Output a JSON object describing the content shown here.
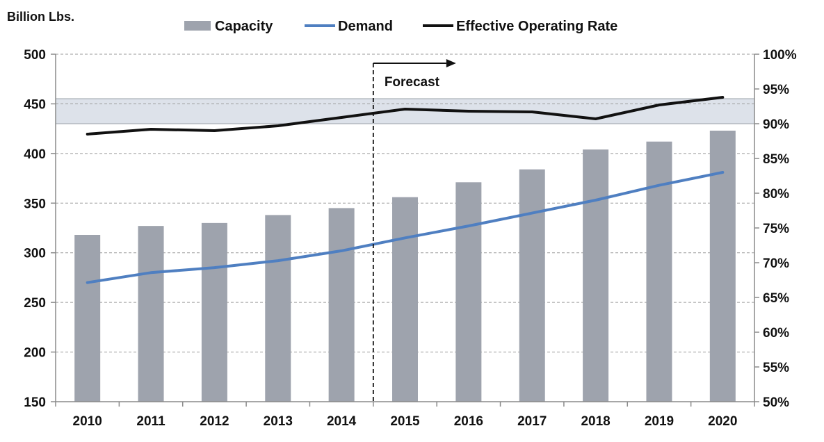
{
  "chart_data": {
    "type": "bar",
    "categories": [
      "2010",
      "2011",
      "2012",
      "2013",
      "2014",
      "2015",
      "2016",
      "2017",
      "2018",
      "2019",
      "2020"
    ],
    "y_unit_label": "Billion Lbs.",
    "ylim": [
      150,
      500
    ],
    "yticks": [
      "150",
      "200",
      "250",
      "300",
      "350",
      "400",
      "450",
      "500"
    ],
    "y2lim": [
      50,
      100
    ],
    "y2ticks": [
      "50%",
      "55%",
      "60%",
      "65%",
      "70%",
      "75%",
      "80%",
      "85%",
      "90%",
      "95%",
      "100%"
    ],
    "series": [
      {
        "name": "Capacity",
        "kind": "bar",
        "axis": "left",
        "color": "#9ea3ad",
        "values": [
          318,
          327,
          330,
          338,
          345,
          356,
          371,
          384,
          404,
          412,
          423
        ]
      },
      {
        "name": "Demand",
        "kind": "line",
        "axis": "left",
        "color": "#4f7fc1",
        "values": [
          270,
          280,
          285,
          292,
          302,
          315,
          327,
          340,
          353,
          368,
          381
        ]
      },
      {
        "name": "Effective Operating Rate",
        "kind": "line",
        "axis": "right",
        "color": "#111111",
        "values": [
          88.5,
          89.2,
          89.0,
          89.7,
          90.9,
          92.1,
          91.8,
          91.7,
          90.7,
          92.7,
          93.8
        ]
      }
    ],
    "band_right_axis": [
      90,
      93.6
    ],
    "band_color": "#dde2ea",
    "forecast": {
      "label": "Forecast",
      "start_between": [
        "2014",
        "2015"
      ]
    },
    "grid": true,
    "legend_position": "top"
  }
}
